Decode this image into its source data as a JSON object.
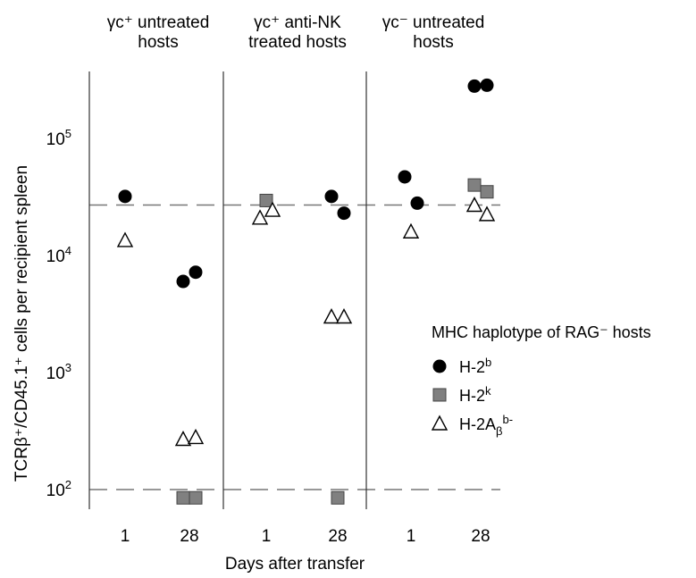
{
  "chart_data": {
    "type": "scatter",
    "yscale": "log",
    "ylim": [
      60,
      400000
    ],
    "ylabel": "TCRβ⁺/CD45.1⁺ cells per recipient spleen",
    "xlabel": "Days after transfer",
    "yticks": [
      {
        "value": 100,
        "base": "10",
        "exp": "2"
      },
      {
        "value": 1000,
        "base": "10",
        "exp": "3"
      },
      {
        "value": 10000,
        "base": "10",
        "exp": "4"
      },
      {
        "value": 100000,
        "base": "10",
        "exp": "5"
      }
    ],
    "reference_lines": [
      27000,
      100
    ],
    "panels": [
      {
        "title_lines": [
          "γc⁺ untreated",
          "hosts"
        ],
        "days": [
          "1",
          "28"
        ]
      },
      {
        "title_lines": [
          "γc⁺ anti-NK",
          "treated hosts"
        ],
        "days": [
          "1",
          "28"
        ]
      },
      {
        "title_lines": [
          "γc⁻ untreated",
          "hosts"
        ],
        "days": [
          "1",
          "28"
        ]
      }
    ],
    "legend": {
      "title": "MHC haplotype of RAG⁻ hosts",
      "position": "right",
      "entries": [
        {
          "series": "H-2b",
          "base": "H-2",
          "sup": "b",
          "sub": "",
          "sup2": ""
        },
        {
          "series": "H-2k",
          "base": "H-2",
          "sup": "k",
          "sub": "",
          "sup2": ""
        },
        {
          "series": "H-2Abeta",
          "base": "H-2A",
          "sup": "",
          "sub": "β",
          "sup2": "b-"
        }
      ]
    },
    "series": [
      {
        "key": "H-2b",
        "marker": "circle",
        "color": "#000000",
        "points": [
          {
            "panel": 0,
            "day": "1",
            "y": 32000
          },
          {
            "panel": 0,
            "day": "28",
            "y": 6000
          },
          {
            "panel": 0,
            "day": "28",
            "y": 7200
          },
          {
            "panel": 1,
            "day": "1",
            "y": 29500
          },
          {
            "panel": 1,
            "day": "28",
            "y": 32000
          },
          {
            "panel": 1,
            "day": "28",
            "y": 23000
          },
          {
            "panel": 2,
            "day": "1",
            "y": 47000
          },
          {
            "panel": 2,
            "day": "1",
            "y": 28000
          },
          {
            "panel": 2,
            "day": "28",
            "y": 280000
          },
          {
            "panel": 2,
            "day": "28",
            "y": 285000
          }
        ]
      },
      {
        "key": "H-2k",
        "marker": "square",
        "color": "#808080",
        "points": [
          {
            "panel": 0,
            "day": "28",
            "y": 85
          },
          {
            "panel": 0,
            "day": "28",
            "y": 85
          },
          {
            "panel": 1,
            "day": "1",
            "y": 29500
          },
          {
            "panel": 1,
            "day": "28",
            "y": 85
          },
          {
            "panel": 2,
            "day": "28",
            "y": 40000
          },
          {
            "panel": 2,
            "day": "28",
            "y": 35000
          }
        ]
      },
      {
        "key": "H-2Abeta",
        "marker": "triangle",
        "color": "#ffffff",
        "points": [
          {
            "panel": 0,
            "day": "1",
            "y": 13500
          },
          {
            "panel": 0,
            "day": "28",
            "y": 270
          },
          {
            "panel": 0,
            "day": "28",
            "y": 280
          },
          {
            "panel": 1,
            "day": "1",
            "y": 21000
          },
          {
            "panel": 1,
            "day": "1",
            "y": 24500
          },
          {
            "panel": 1,
            "day": "28",
            "y": 3000
          },
          {
            "panel": 1,
            "day": "28",
            "y": 3000
          },
          {
            "panel": 2,
            "day": "1",
            "y": 16000
          },
          {
            "panel": 2,
            "day": "28",
            "y": 27000
          },
          {
            "panel": 2,
            "day": "28",
            "y": 22500
          }
        ]
      }
    ]
  }
}
